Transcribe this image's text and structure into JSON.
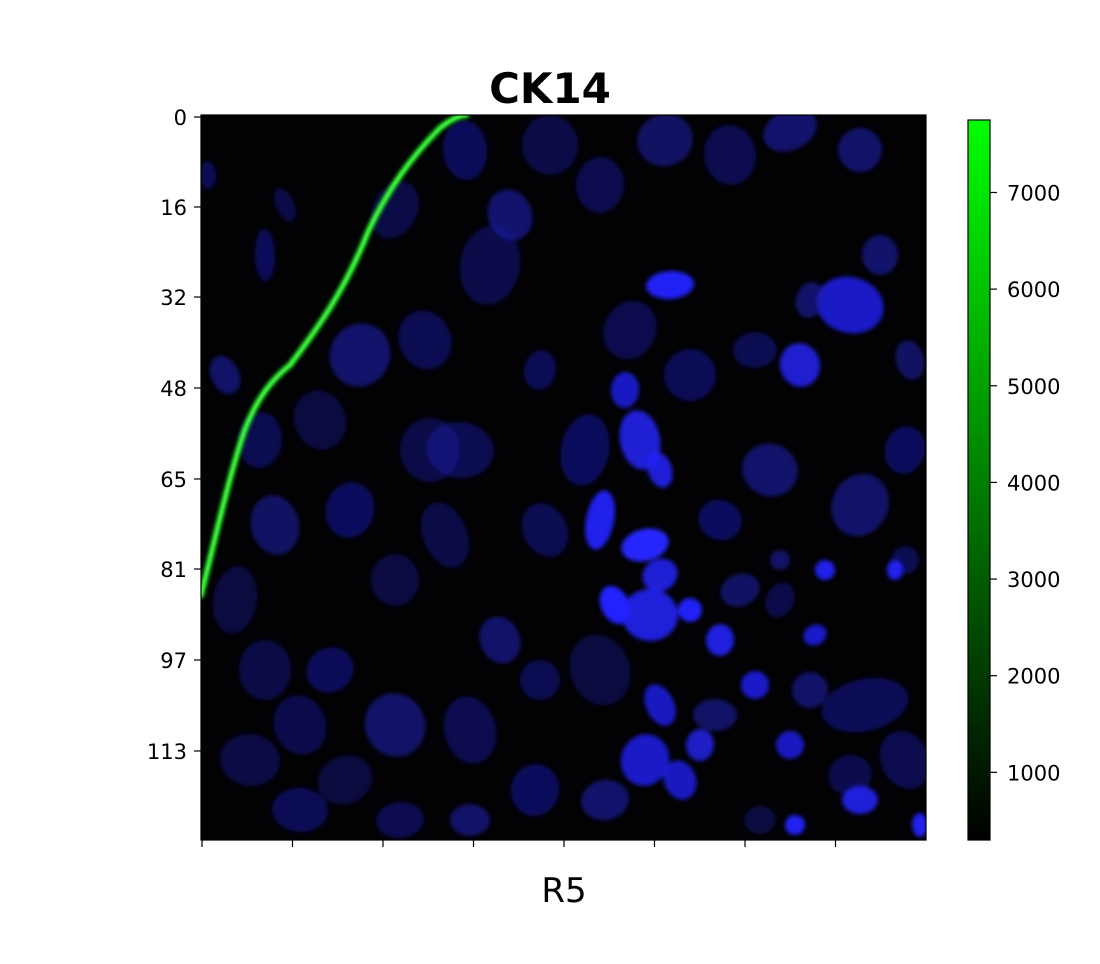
{
  "figure": {
    "title": "CK14",
    "xlabel": "R5"
  },
  "image_axes": {
    "y_ticks": [
      "0",
      "16",
      "32",
      "48",
      "65",
      "81",
      "97",
      "113"
    ],
    "x_tick_count": 8
  },
  "colorbar": {
    "ticks": [
      "1000",
      "2000",
      "3000",
      "4000",
      "5000",
      "6000",
      "7000"
    ],
    "range": [
      300,
      7750
    ],
    "colors": [
      "#000000",
      "#00ff00"
    ]
  },
  "image_colors": {
    "background": "#020204",
    "nuclei": "#1a1aa8",
    "nuclei_bright": "#2424ff",
    "ck14_signal": "#22ff22"
  }
}
